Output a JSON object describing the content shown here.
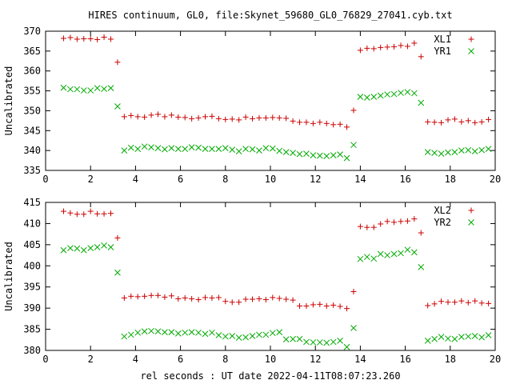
{
  "title": "HIRES continuum, GL0, file:Skynet_59680_GL0_76829_27041.cyb.txt",
  "xlabel": "rel seconds : UT date 2022-04-11T08:07:23.260",
  "colors": {
    "red": "#cc0000",
    "green": "#00aa00"
  },
  "chart_data": [
    {
      "type": "scatter",
      "ylabel": "Uncalibrated",
      "xlim": [
        0,
        20
      ],
      "ylim": [
        335,
        370
      ],
      "xticks": [
        0,
        2,
        4,
        6,
        8,
        10,
        12,
        14,
        16,
        18,
        20
      ],
      "yticks": [
        335,
        340,
        345,
        350,
        355,
        360,
        365,
        370
      ],
      "legend_position": "top-right",
      "series": [
        {
          "name": "XL1",
          "marker": "plus",
          "color": "#cc0000",
          "x": [
            0.8,
            1.1,
            1.4,
            1.7,
            2.0,
            2.3,
            2.6,
            2.9,
            3.2,
            3.5,
            3.8,
            4.1,
            4.4,
            4.7,
            5.0,
            5.3,
            5.6,
            5.9,
            6.2,
            6.5,
            6.8,
            7.1,
            7.4,
            7.7,
            8.0,
            8.3,
            8.6,
            8.9,
            9.2,
            9.5,
            9.8,
            10.1,
            10.4,
            10.7,
            11.0,
            11.3,
            11.6,
            11.9,
            12.2,
            12.5,
            12.8,
            13.1,
            13.4,
            13.7,
            14.0,
            14.3,
            14.6,
            14.9,
            15.2,
            15.5,
            15.8,
            16.1,
            16.4,
            16.7,
            17.0,
            17.3,
            17.6,
            17.9,
            18.2,
            18.5,
            18.8,
            19.1,
            19.4,
            19.7
          ],
          "y": [
            368.2,
            368.4,
            368.0,
            368.1,
            368.1,
            367.9,
            368.5,
            368.0,
            362.2,
            348.5,
            348.8,
            348.5,
            348.4,
            348.9,
            349.1,
            348.5,
            348.9,
            348.4,
            348.3,
            348.0,
            348.2,
            348.5,
            348.6,
            348.0,
            347.8,
            347.9,
            347.7,
            348.4,
            348.0,
            348.2,
            348.2,
            348.3,
            348.2,
            348.1,
            347.4,
            347.1,
            347.1,
            346.8,
            347.1,
            346.8,
            346.5,
            346.6,
            345.9,
            350.1,
            365.2,
            365.7,
            365.6,
            365.9,
            366.0,
            366.1,
            366.4,
            366.2,
            367.0,
            363.6,
            347.2,
            347.1,
            347.0,
            347.7,
            347.9,
            347.2,
            347.5,
            347.0,
            347.2,
            347.8
          ]
        },
        {
          "name": "YR1",
          "marker": "cross",
          "color": "#00aa00",
          "x": [
            0.8,
            1.1,
            1.4,
            1.7,
            2.0,
            2.3,
            2.6,
            2.9,
            3.2,
            3.5,
            3.8,
            4.1,
            4.4,
            4.7,
            5.0,
            5.3,
            5.6,
            5.9,
            6.2,
            6.5,
            6.8,
            7.1,
            7.4,
            7.7,
            8.0,
            8.3,
            8.6,
            8.9,
            9.2,
            9.5,
            9.8,
            10.1,
            10.4,
            10.7,
            11.0,
            11.3,
            11.6,
            11.9,
            12.2,
            12.5,
            12.8,
            13.1,
            13.4,
            13.7,
            14.0,
            14.3,
            14.6,
            14.9,
            15.2,
            15.5,
            15.8,
            16.1,
            16.4,
            16.7,
            17.0,
            17.3,
            17.6,
            17.9,
            18.2,
            18.5,
            18.8,
            19.1,
            19.4,
            19.7
          ],
          "y": [
            355.8,
            355.4,
            355.4,
            355.1,
            355.1,
            355.7,
            355.5,
            355.7,
            351.1,
            340.0,
            340.7,
            340.4,
            341.0,
            340.8,
            340.6,
            340.3,
            340.6,
            340.4,
            340.4,
            340.8,
            340.7,
            340.4,
            340.4,
            340.4,
            340.6,
            340.2,
            339.8,
            340.4,
            340.3,
            340.0,
            340.6,
            340.5,
            339.9,
            339.6,
            339.4,
            339.1,
            339.2,
            338.8,
            338.7,
            338.6,
            338.8,
            339.0,
            338.1,
            341.4,
            353.5,
            353.3,
            353.5,
            353.8,
            354.1,
            354.2,
            354.5,
            354.7,
            354.4,
            352.0,
            339.6,
            339.4,
            339.2,
            339.5,
            339.6,
            340.0,
            340.1,
            339.8,
            340.1,
            340.4
          ]
        }
      ]
    },
    {
      "type": "scatter",
      "ylabel": "Uncalibrated",
      "xlim": [
        0,
        20
      ],
      "ylim": [
        380,
        415
      ],
      "xticks": [
        0,
        2,
        4,
        6,
        8,
        10,
        12,
        14,
        16,
        18,
        20
      ],
      "yticks": [
        380,
        385,
        390,
        395,
        400,
        405,
        410,
        415
      ],
      "legend_position": "top-right",
      "series": [
        {
          "name": "XL2",
          "marker": "plus",
          "color": "#cc0000",
          "x": [
            0.8,
            1.1,
            1.4,
            1.7,
            2.0,
            2.3,
            2.6,
            2.9,
            3.2,
            3.5,
            3.8,
            4.1,
            4.4,
            4.7,
            5.0,
            5.3,
            5.6,
            5.9,
            6.2,
            6.5,
            6.8,
            7.1,
            7.4,
            7.7,
            8.0,
            8.3,
            8.6,
            8.9,
            9.2,
            9.5,
            9.8,
            10.1,
            10.4,
            10.7,
            11.0,
            11.3,
            11.6,
            11.9,
            12.2,
            12.5,
            12.8,
            13.1,
            13.4,
            13.7,
            14.0,
            14.3,
            14.6,
            14.9,
            15.2,
            15.5,
            15.8,
            16.1,
            16.4,
            16.7,
            17.0,
            17.3,
            17.6,
            17.9,
            18.2,
            18.5,
            18.8,
            19.1,
            19.4,
            19.7
          ],
          "y": [
            412.9,
            412.5,
            412.2,
            412.2,
            412.9,
            412.3,
            412.3,
            412.4,
            406.6,
            392.4,
            392.8,
            392.7,
            392.8,
            393.0,
            393.0,
            392.6,
            392.9,
            392.2,
            392.4,
            392.2,
            392.0,
            392.5,
            392.4,
            392.5,
            391.6,
            391.4,
            391.4,
            392.1,
            392.1,
            392.2,
            392.0,
            392.5,
            392.3,
            392.1,
            391.9,
            390.5,
            390.5,
            390.8,
            390.9,
            390.5,
            390.7,
            390.4,
            389.9,
            393.9,
            409.3,
            409.1,
            409.1,
            409.9,
            410.5,
            410.3,
            410.5,
            410.6,
            411.1,
            407.8,
            390.6,
            391.0,
            391.6,
            391.4,
            391.4,
            391.7,
            391.3,
            391.7,
            391.2,
            391.1
          ]
        },
        {
          "name": "YR2",
          "marker": "cross",
          "color": "#00aa00",
          "x": [
            0.8,
            1.1,
            1.4,
            1.7,
            2.0,
            2.3,
            2.6,
            2.9,
            3.2,
            3.5,
            3.8,
            4.1,
            4.4,
            4.7,
            5.0,
            5.3,
            5.6,
            5.9,
            6.2,
            6.5,
            6.8,
            7.1,
            7.4,
            7.7,
            8.0,
            8.3,
            8.6,
            8.9,
            9.2,
            9.5,
            9.8,
            10.1,
            10.4,
            10.7,
            11.0,
            11.3,
            11.6,
            11.9,
            12.2,
            12.5,
            12.8,
            13.1,
            13.4,
            13.7,
            14.0,
            14.3,
            14.6,
            14.9,
            15.2,
            15.5,
            15.8,
            16.1,
            16.4,
            16.7,
            17.0,
            17.3,
            17.6,
            17.9,
            18.2,
            18.5,
            18.8,
            19.1,
            19.4,
            19.7
          ],
          "y": [
            403.7,
            404.2,
            404.1,
            403.7,
            404.2,
            404.4,
            404.8,
            404.4,
            398.4,
            383.3,
            383.7,
            384.2,
            384.5,
            384.6,
            384.5,
            384.3,
            384.3,
            384.0,
            384.2,
            384.3,
            384.2,
            383.9,
            384.2,
            383.6,
            383.3,
            383.4,
            383.0,
            383.1,
            383.4,
            383.7,
            383.7,
            384.1,
            384.3,
            382.6,
            382.7,
            382.7,
            382.0,
            381.9,
            381.9,
            381.8,
            382.0,
            382.3,
            380.8,
            385.3,
            401.6,
            402.1,
            401.7,
            402.8,
            402.5,
            402.8,
            403.0,
            403.8,
            403.2,
            399.7,
            382.3,
            382.7,
            383.2,
            382.8,
            382.7,
            383.2,
            383.3,
            383.4,
            383.1,
            383.6
          ]
        }
      ]
    }
  ]
}
